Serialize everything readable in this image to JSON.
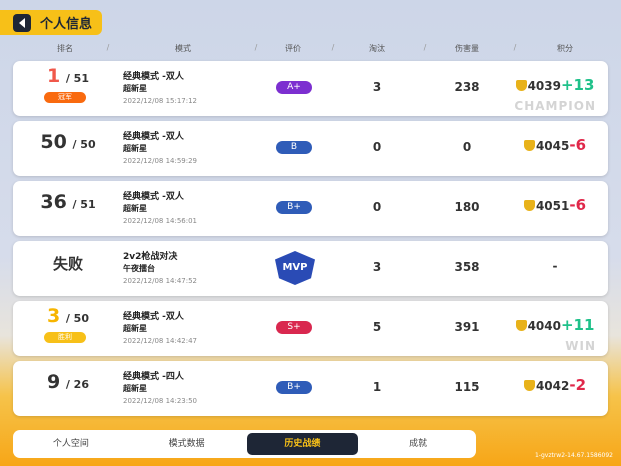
{
  "header": {
    "title": "个人信息"
  },
  "columns": [
    "排名",
    "模式",
    "评价",
    "淘汰",
    "伤害量",
    "积分"
  ],
  "rows": [
    {
      "rank": "1",
      "total": "/ 51",
      "tag": "冠军",
      "tag_color": "#f96a0f",
      "rank_color": "#f0584a",
      "mode": "经典模式 -双人",
      "map": "超新星",
      "time": "2022/12/08 15:17:12",
      "grade": "A+",
      "grade_color": "#7c2fd0",
      "eliminations": "3",
      "damage": "238",
      "score": "4039",
      "delta": "+13",
      "delta_color": "#1fc18a",
      "watermark": "CHAMPION"
    },
    {
      "rank": "50",
      "total": "/ 50",
      "mode": "经典模式 -双人",
      "map": "超新星",
      "time": "2022/12/08 14:59:29",
      "grade": "B",
      "grade_color": "#2f5cb8",
      "eliminations": "0",
      "damage": "0",
      "score": "4045",
      "delta": "-6",
      "delta_color": "#e0284a"
    },
    {
      "rank": "36",
      "total": "/ 51",
      "mode": "经典模式 -双人",
      "map": "超新星",
      "time": "2022/12/08 14:56:01",
      "grade": "B+",
      "grade_color": "#2f5cb8",
      "eliminations": "0",
      "damage": "180",
      "score": "4051",
      "delta": "-6",
      "delta_color": "#e0284a"
    },
    {
      "rank": "失败",
      "total": "",
      "mode": "2v2枪战对决",
      "map": "午夜擂台",
      "time": "2022/12/08 14:47:52",
      "grade": "MVP",
      "eliminations": "3",
      "damage": "358",
      "score": "-",
      "delta": ""
    },
    {
      "rank": "3",
      "total": "/ 50",
      "tag": "胜利",
      "tag_color": "#f7c018",
      "rank_color": "#f7b500",
      "mode": "经典模式 -双人",
      "map": "超新星",
      "time": "2022/12/08 14:42:47",
      "grade": "S+",
      "grade_color": "#d9284f",
      "eliminations": "5",
      "damage": "391",
      "score": "4040",
      "delta": "+11",
      "delta_color": "#1fc18a",
      "watermark": "WIN"
    },
    {
      "rank": "9",
      "total": "/ 26",
      "mode": "经典模式 -四人",
      "map": "超新星",
      "time": "2022/12/08 14:23:50",
      "grade": "B+",
      "grade_color": "#2f5cb8",
      "eliminations": "1",
      "damage": "115",
      "score": "4042",
      "delta": "-2",
      "delta_color": "#e0284a"
    }
  ],
  "tabs": [
    {
      "label": "个人空间"
    },
    {
      "label": "模式数据"
    },
    {
      "label": "历史战绩",
      "active": true
    },
    {
      "label": "成就"
    }
  ],
  "version": "1-gvztrw2-14.67.1586092"
}
